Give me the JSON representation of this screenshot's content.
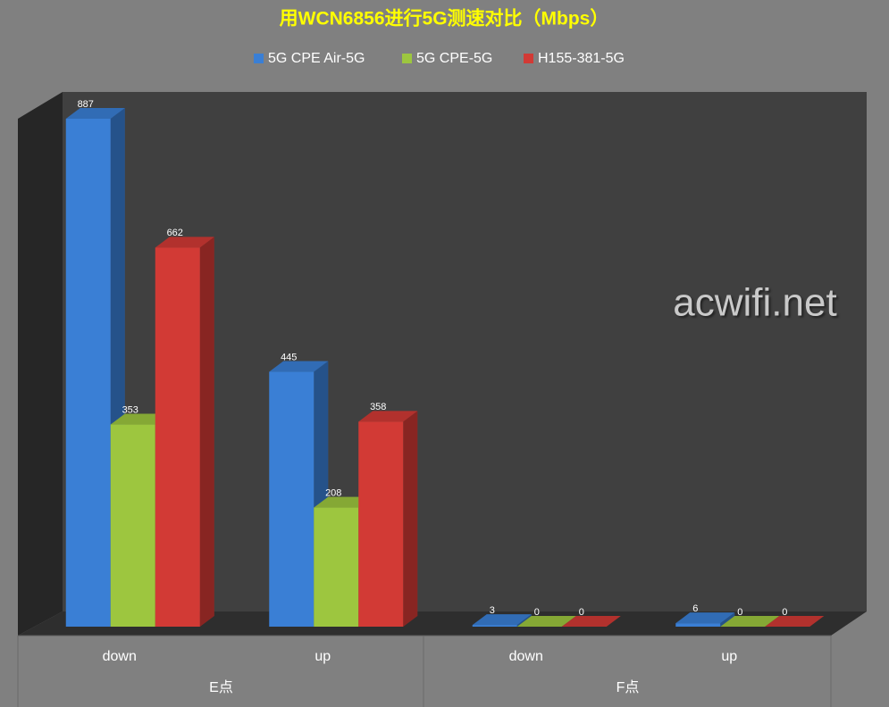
{
  "chart_data": {
    "type": "bar3d",
    "title": "用WCN6856进行5G测速对比（Mbps）",
    "categories": [
      "down",
      "up",
      "down",
      "up"
    ],
    "group_labels": [
      "E点",
      "F点"
    ],
    "series": [
      {
        "name": "5G CPE Air-5G",
        "color": "#3a7fd5",
        "values": [
          887,
          445,
          3,
          6
        ]
      },
      {
        "name": "5G CPE-5G",
        "color": "#9dc63f",
        "values": [
          353,
          208,
          0,
          0
        ]
      },
      {
        "name": "H155-381-5G",
        "color": "#d23a35",
        "values": [
          662,
          358,
          0,
          0
        ]
      }
    ],
    "watermark": "acwifi.net"
  }
}
